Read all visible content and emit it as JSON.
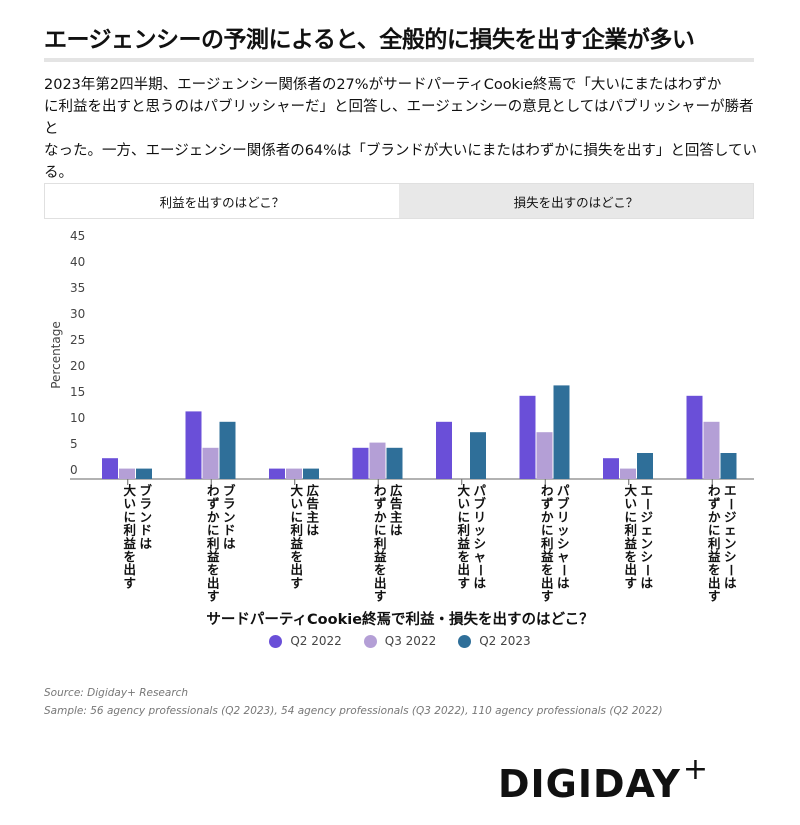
{
  "title": "エージェンシーの予測によると、全般的に損失を出す企業が多い",
  "description": [
    "2023年第2四半期、エージェンシー関係者の27%がサードパーティCookie終焉で「大いにまたはわずか",
    "に利益を出すと思うのはパブリッシャーだ」と回答し、エージェンシーの意見としてはパブリッシャーが勝者と",
    "なった。一方、エージェンシー関係者の64%は「ブランドが大いにまたはわずかに損失を出す」と回答している。"
  ],
  "tabs": {
    "profit": "利益を出すのはどこ？",
    "loss": "損失を出すのはどこ？"
  },
  "colors": {
    "q2_2022": "#6a4fd8",
    "q3_2022": "#b49fd6",
    "q2_2023": "#2f6f99"
  },
  "chart_data": {
    "type": "bar",
    "title": "サードパーティCookie終焉で利益・損失を出すのはどこ？",
    "ylabel": "Percentage",
    "ylim": [
      0,
      45
    ],
    "yticks": [
      0,
      5,
      10,
      15,
      20,
      25,
      30,
      35,
      40,
      45
    ],
    "categories": [
      [
        "ブランドは",
        "大いに利益を出す"
      ],
      [
        "ブランドは",
        "わずかに利益を出す"
      ],
      [
        "広告主は",
        "大いに利益を出す"
      ],
      [
        "広告主は",
        "わずかに利益を出す"
      ],
      [
        "パブリッシャーは",
        "大いに利益を出す"
      ],
      [
        "パブリッシャーは",
        "わずかに利益を出す"
      ],
      [
        "エージェンシーは",
        "大いに利益を出す"
      ],
      [
        "エージェンシーは",
        "わずかに利益を出す"
      ]
    ],
    "series": [
      {
        "name": "Q2 2022",
        "values": [
          4,
          13,
          2,
          6,
          11,
          16,
          4,
          16
        ]
      },
      {
        "name": "Q3 2022",
        "values": [
          2,
          6,
          2,
          7,
          0,
          9,
          2,
          11
        ]
      },
      {
        "name": "Q2 2023",
        "values": [
          2,
          11,
          2,
          6,
          9,
          18,
          5,
          5
        ]
      }
    ]
  },
  "source": "Source: Digiday+ Research",
  "sample": "Sample: 56 agency professionals (Q2 2023), 54 agency professionals (Q3 2022), 110 agency professionals (Q2 2022)",
  "logo": {
    "text": "DIGIDAY",
    "plus": "+"
  }
}
